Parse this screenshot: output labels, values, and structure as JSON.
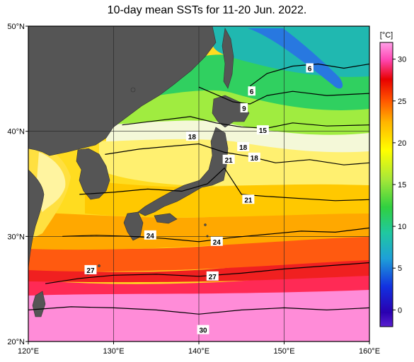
{
  "chart_data": {
    "type": "heatmap",
    "title": "10-day mean SSTs for 11-20 Jun. 2022.",
    "xlabel": "",
    "ylabel": "",
    "xlim": [
      120,
      160
    ],
    "ylim": [
      20,
      50
    ],
    "x_ticks": [
      "120°E",
      "130°E",
      "140°E",
      "150°E",
      "160°E"
    ],
    "y_ticks": [
      "20°N",
      "30°N",
      "40°N",
      "50°N"
    ],
    "colorbar": {
      "unit": "[°C]",
      "range": [
        -2,
        32
      ],
      "ticks": [
        "0",
        "5",
        "10",
        "15",
        "20",
        "25",
        "30"
      ],
      "colors": [
        "#2a00b0",
        "#1230e0",
        "#1ea0d8",
        "#20c8a0",
        "#30d040",
        "#a8e838",
        "#ffff00",
        "#ffb400",
        "#ff5000",
        "#e80000",
        "#ff48b4",
        "#ffa0e8"
      ]
    },
    "contour_labels": [
      {
        "text": "6",
        "lon": 153,
        "lat": 46
      },
      {
        "text": "6",
        "lon": 146.2,
        "lat": 43.8
      },
      {
        "text": "9",
        "lon": 145.3,
        "lat": 42.2
      },
      {
        "text": "15",
        "lon": 147.5,
        "lat": 40.1
      },
      {
        "text": "18",
        "lon": 139.2,
        "lat": 39.5
      },
      {
        "text": "18",
        "lon": 145.2,
        "lat": 38.5
      },
      {
        "text": "18",
        "lon": 146.5,
        "lat": 37.5
      },
      {
        "text": "21",
        "lon": 143.5,
        "lat": 37.3
      },
      {
        "text": "21",
        "lon": 145.8,
        "lat": 33.5
      },
      {
        "text": "24",
        "lon": 134.3,
        "lat": 30.1
      },
      {
        "text": "24",
        "lon": 142.1,
        "lat": 29.5
      },
      {
        "text": "27",
        "lon": 127.3,
        "lat": 26.8
      },
      {
        "text": "27",
        "lon": 141.6,
        "lat": 26.2
      },
      {
        "text": "30",
        "lon": 140.5,
        "lat": 21.1
      }
    ],
    "isotherm_contours": [
      {
        "value": 30,
        "points": [
          [
            120,
            23
          ],
          [
            125,
            23.3
          ],
          [
            130,
            23.2
          ],
          [
            135,
            23.0
          ],
          [
            140,
            22.6
          ],
          [
            145,
            23.0
          ],
          [
            150,
            23.2
          ],
          [
            155,
            23.0
          ],
          [
            160,
            23.2
          ]
        ]
      },
      {
        "value": 27,
        "points": [
          [
            122,
            25.5
          ],
          [
            126,
            26.0
          ],
          [
            130,
            26.3
          ],
          [
            135,
            26.4
          ],
          [
            140,
            26.2
          ],
          [
            145,
            26.5
          ],
          [
            150,
            26.9
          ],
          [
            155,
            27.2
          ],
          [
            160,
            27.5
          ]
        ]
      },
      {
        "value": 24,
        "points": [
          [
            124,
            30.0
          ],
          [
            128,
            30.1
          ],
          [
            132,
            30.0
          ],
          [
            136,
            29.8
          ],
          [
            140,
            29.5
          ],
          [
            144,
            29.9
          ],
          [
            148,
            30.2
          ],
          [
            152,
            30.5
          ],
          [
            156,
            30.4
          ],
          [
            160,
            30.8
          ]
        ]
      },
      {
        "value": 21,
        "points": [
          [
            126,
            34.0
          ],
          [
            130,
            34.2
          ],
          [
            134,
            34.5
          ],
          [
            138,
            34.3
          ],
          [
            141,
            35.0
          ],
          [
            143,
            36.5
          ],
          [
            145,
            34.0
          ],
          [
            148,
            33.8
          ],
          [
            152,
            33.6
          ],
          [
            156,
            33.4
          ],
          [
            160,
            33.5
          ]
        ]
      },
      {
        "value": 18,
        "points": [
          [
            129,
            37.8
          ],
          [
            133,
            38.3
          ],
          [
            137,
            38.6
          ],
          [
            140,
            38.8
          ],
          [
            143,
            38.0
          ],
          [
            146,
            37.6
          ],
          [
            149,
            37.0
          ],
          [
            153,
            37.3
          ],
          [
            157,
            36.8
          ],
          [
            160,
            37.0
          ]
        ]
      },
      {
        "value": 15,
        "points": [
          [
            131,
            40.6
          ],
          [
            135,
            41.0
          ],
          [
            139,
            41.4
          ],
          [
            142,
            40.8
          ],
          [
            145,
            40.4
          ],
          [
            148,
            40.3
          ],
          [
            151,
            40.8
          ],
          [
            155,
            40.5
          ],
          [
            160,
            40.6
          ]
        ]
      },
      {
        "value": 9,
        "points": [
          [
            140,
            44.2
          ],
          [
            142,
            43.5
          ],
          [
            144,
            42.8
          ],
          [
            146,
            42.6
          ],
          [
            148,
            43.4
          ],
          [
            151,
            43.8
          ],
          [
            155,
            43.4
          ],
          [
            160,
            43.6
          ]
        ]
      },
      {
        "value": 6,
        "points": [
          [
            146,
            44.3
          ],
          [
            148,
            45.5
          ],
          [
            151,
            46.2
          ],
          [
            154,
            46.4
          ],
          [
            157,
            46.0
          ],
          [
            160,
            46.4
          ]
        ]
      }
    ],
    "legend": "colorbar-right",
    "grid": true
  }
}
